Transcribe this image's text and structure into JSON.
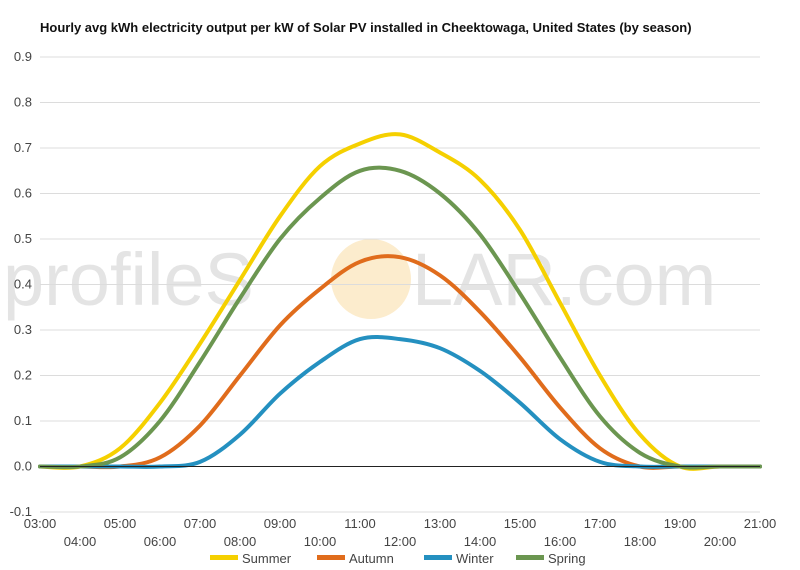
{
  "chart_data": {
    "type": "line",
    "title": "Hourly avg kWh electricity output per kW of Solar PV installed in Cheektowaga, United States (by season)",
    "xlabel": "",
    "ylabel": "",
    "x": [
      "03:00",
      "04:00",
      "05:00",
      "06:00",
      "07:00",
      "08:00",
      "09:00",
      "10:00",
      "11:00",
      "12:00",
      "13:00",
      "14:00",
      "15:00",
      "16:00",
      "17:00",
      "18:00",
      "19:00",
      "20:00",
      "21:00"
    ],
    "yticks": [
      -0.1,
      0.0,
      0.1,
      0.2,
      0.3,
      0.4,
      0.5,
      0.6,
      0.7,
      0.8,
      0.9
    ],
    "ylim": [
      -0.1,
      0.9
    ],
    "grid": true,
    "legend_position": "bottom",
    "watermark": {
      "left": "profileS",
      "right": "LAR.com"
    },
    "series": [
      {
        "name": "Summer",
        "color": "#f5d000",
        "values": [
          0.0,
          0.0,
          0.04,
          0.14,
          0.27,
          0.41,
          0.55,
          0.66,
          0.71,
          0.73,
          0.69,
          0.63,
          0.52,
          0.36,
          0.2,
          0.07,
          0.0,
          0.0,
          0.0
        ]
      },
      {
        "name": "Autumn",
        "color": "#e06c1c",
        "values": [
          0.0,
          0.0,
          0.0,
          0.02,
          0.09,
          0.2,
          0.31,
          0.39,
          0.45,
          0.46,
          0.42,
          0.34,
          0.24,
          0.13,
          0.04,
          0.0,
          0.0,
          0.0,
          0.0
        ]
      },
      {
        "name": "Winter",
        "color": "#2490c0",
        "values": [
          0.0,
          0.0,
          0.0,
          0.0,
          0.01,
          0.07,
          0.16,
          0.23,
          0.28,
          0.28,
          0.26,
          0.21,
          0.14,
          0.06,
          0.01,
          0.0,
          0.0,
          0.0,
          0.0
        ]
      },
      {
        "name": "Spring",
        "color": "#6b9650",
        "values": [
          0.0,
          0.0,
          0.02,
          0.1,
          0.23,
          0.37,
          0.5,
          0.59,
          0.65,
          0.65,
          0.6,
          0.51,
          0.38,
          0.24,
          0.11,
          0.03,
          0.0,
          0.0,
          0.0
        ]
      }
    ]
  }
}
